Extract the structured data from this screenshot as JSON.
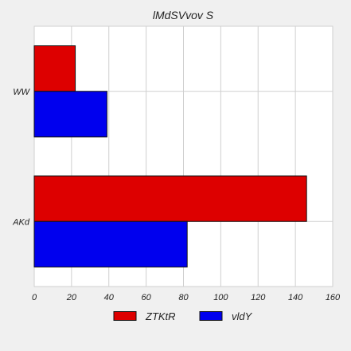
{
  "chart_data": {
    "type": "bar",
    "orientation": "horizontal",
    "title": "lMdSVvov S",
    "xlabel": "",
    "ylabel": "",
    "categories": [
      "AKd",
      "WW"
    ],
    "series": [
      {
        "name": "ZTKtR",
        "values": [
          146,
          22
        ],
        "color": "#dd0000"
      },
      {
        "name": "vldY",
        "values": [
          82,
          39
        ],
        "color": "#0000ee"
      }
    ],
    "xlim": [
      0,
      160
    ],
    "xticks": [
      0,
      20,
      40,
      60,
      80,
      100,
      120,
      140,
      160
    ],
    "grid": true,
    "legend": "bottom-center"
  }
}
